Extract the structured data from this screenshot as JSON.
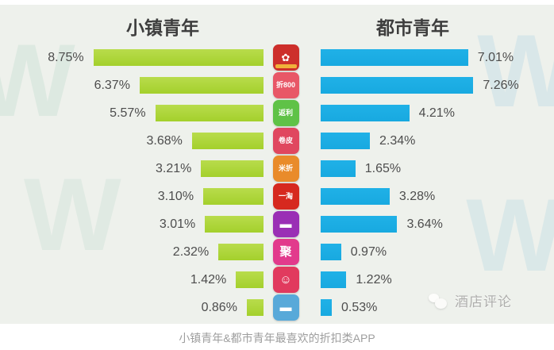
{
  "header": {
    "left_title": "小镇青年",
    "right_title": "都市青年"
  },
  "caption": "小镇青年&都市青年最喜欢的折扣类APP",
  "brand": {
    "name": "酒店评论"
  },
  "watermark": {
    "letter": "W"
  },
  "chart_data": {
    "type": "bar",
    "layout": "diverging-horizontal",
    "unit": "%",
    "title": "小镇青年&都市青年最喜欢的折扣类APP",
    "categories": [
      "app-01",
      "app-02",
      "app-03",
      "app-04",
      "app-05",
      "app-06",
      "app-07",
      "app-08",
      "app-09",
      "app-10"
    ],
    "series": [
      {
        "name": "小镇青年",
        "side": "left",
        "color": "#a4d02c",
        "values": [
          8.75,
          6.37,
          5.57,
          3.68,
          3.21,
          3.1,
          3.01,
          2.32,
          1.42,
          0.86
        ],
        "labels": [
          "8.75%",
          "6.37%",
          "5.57%",
          "3.68%",
          "3.21%",
          "3.10%",
          "3.01%",
          "2.32%",
          "1.42%",
          "0.86%"
        ]
      },
      {
        "name": "都市青年",
        "side": "right",
        "color": "#18a9e0",
        "values": [
          7.01,
          7.26,
          4.21,
          2.34,
          1.65,
          3.28,
          3.64,
          0.97,
          1.22,
          0.53
        ],
        "labels": [
          "7.01%",
          "7.26%",
          "4.21%",
          "2.34%",
          "1.65%",
          "3.28%",
          "3.64%",
          "0.97%",
          "1.22%",
          "0.53%"
        ]
      }
    ],
    "icons": [
      {
        "bg": "#cd2f2b",
        "text": "✿",
        "band": "#f0b03a"
      },
      {
        "bg": "#e85767",
        "text": "折800"
      },
      {
        "bg": "#5fc247",
        "text": "返利"
      },
      {
        "bg": "#e0475f",
        "text": "卷皮"
      },
      {
        "bg": "#e98b2a",
        "text": "米折"
      },
      {
        "bg": "#d6291f",
        "text": "一淘"
      },
      {
        "bg": "#9a2fb5",
        "text": "▬"
      },
      {
        "bg": "#e23a8c",
        "text": "聚"
      },
      {
        "bg": "#e13a5e",
        "text": "☺"
      },
      {
        "bg": "#58a9d9",
        "text": "▬"
      }
    ],
    "axis": {
      "gridlines": false,
      "value_labels_shown": true
    }
  }
}
